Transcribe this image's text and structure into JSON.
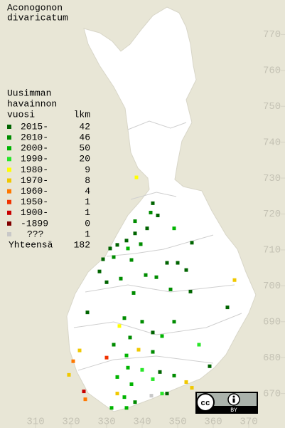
{
  "title": [
    "Aconogonon",
    "divaricatum"
  ],
  "legend": {
    "header": [
      "Uusimman",
      "havainnon",
      "vuosi"
    ],
    "count_header": "lkm",
    "rows": [
      {
        "label": "2015-",
        "count": 42,
        "color": "#006400"
      },
      {
        "label": "2010-",
        "count": 46,
        "color": "#008c00"
      },
      {
        "label": "2000-",
        "count": 50,
        "color": "#00b400"
      },
      {
        "label": "1990-",
        "count": 20,
        "color": "#28e628"
      },
      {
        "label": "1980-",
        "count": 9,
        "color": "#ffff00"
      },
      {
        "label": "1970-",
        "count": 8,
        "color": "#f0c800"
      },
      {
        "label": "1960-",
        "count": 4,
        "color": "#ff7800"
      },
      {
        "label": "1950-",
        "count": 1,
        "color": "#f03200"
      },
      {
        "label": "1900-",
        "count": 1,
        "color": "#c80000"
      },
      {
        "label": "-1899",
        "count": 0,
        "color": "#800000"
      },
      {
        "label": "???",
        "count": 1,
        "color": "#c8c8c8"
      }
    ],
    "total_label": "Yhteensä",
    "total": 182
  },
  "xticks": [
    310,
    320,
    330,
    340,
    350,
    360,
    370
  ],
  "yticks": [
    670,
    680,
    690,
    700,
    710,
    720,
    730,
    740,
    750,
    760,
    770
  ],
  "xlim": [
    300,
    380.2
  ],
  "ylim": [
    660.4,
    779.6
  ],
  "points": [
    {
      "x": 338.4,
      "y": 730.2,
      "period": 4
    },
    {
      "x": 343,
      "y": 723,
      "period": 0
    },
    {
      "x": 342.4,
      "y": 720.4,
      "period": 1
    },
    {
      "x": 344.4,
      "y": 719.6,
      "period": 0
    },
    {
      "x": 338,
      "y": 718,
      "period": 1
    },
    {
      "x": 341.4,
      "y": 716,
      "period": 0
    },
    {
      "x": 338,
      "y": 714.6,
      "period": 0
    },
    {
      "x": 349,
      "y": 716,
      "period": 2
    },
    {
      "x": 335.6,
      "y": 712.6,
      "period": 0
    },
    {
      "x": 339.6,
      "y": 711.6,
      "period": 1
    },
    {
      "x": 354,
      "y": 712,
      "period": 0
    },
    {
      "x": 331,
      "y": 710.4,
      "period": 0
    },
    {
      "x": 333,
      "y": 711.4,
      "period": 0
    },
    {
      "x": 336,
      "y": 710.4,
      "period": 2
    },
    {
      "x": 329,
      "y": 707.4,
      "period": 0
    },
    {
      "x": 332,
      "y": 708,
      "period": 1
    },
    {
      "x": 337,
      "y": 707.2,
      "period": 1
    },
    {
      "x": 347,
      "y": 706.4,
      "period": 0
    },
    {
      "x": 350,
      "y": 706.4,
      "period": 0
    },
    {
      "x": 352.4,
      "y": 704.4,
      "period": 0
    },
    {
      "x": 328,
      "y": 704,
      "period": 0
    },
    {
      "x": 334,
      "y": 702,
      "period": 1
    },
    {
      "x": 341,
      "y": 703,
      "period": 1
    },
    {
      "x": 344,
      "y": 702.4,
      "period": 1
    },
    {
      "x": 348,
      "y": 699,
      "period": 1
    },
    {
      "x": 353.6,
      "y": 698.4,
      "period": 0
    },
    {
      "x": 330,
      "y": 701,
      "period": 0
    },
    {
      "x": 337.6,
      "y": 698,
      "period": 1
    },
    {
      "x": 366,
      "y": 701.6,
      "period": 5
    },
    {
      "x": 364,
      "y": 694,
      "period": 0
    },
    {
      "x": 324.6,
      "y": 692.6,
      "period": 0
    },
    {
      "x": 335,
      "y": 691,
      "period": 1
    },
    {
      "x": 340,
      "y": 690,
      "period": 1
    },
    {
      "x": 349,
      "y": 690,
      "period": 1
    },
    {
      "x": 333.6,
      "y": 688.8,
      "period": 4
    },
    {
      "x": 343,
      "y": 687,
      "period": 0
    },
    {
      "x": 345.6,
      "y": 686,
      "period": 2
    },
    {
      "x": 336.6,
      "y": 685.6,
      "period": 1
    },
    {
      "x": 332,
      "y": 683.6,
      "period": 1
    },
    {
      "x": 339,
      "y": 682.2,
      "period": 5
    },
    {
      "x": 356,
      "y": 683.6,
      "period": 3
    },
    {
      "x": 322.4,
      "y": 682,
      "period": 5
    },
    {
      "x": 335.6,
      "y": 680.6,
      "period": 2
    },
    {
      "x": 343,
      "y": 681.6,
      "period": 1
    },
    {
      "x": 359,
      "y": 677.6,
      "period": 0
    },
    {
      "x": 320.6,
      "y": 679,
      "period": 6
    },
    {
      "x": 336,
      "y": 677.2,
      "period": 2
    },
    {
      "x": 340,
      "y": 676.6,
      "period": 3
    },
    {
      "x": 345,
      "y": 676,
      "period": 0
    },
    {
      "x": 349,
      "y": 675,
      "period": 1
    },
    {
      "x": 352.4,
      "y": 673.2,
      "period": 5
    },
    {
      "x": 354,
      "y": 671.6,
      "period": 5
    },
    {
      "x": 319.4,
      "y": 675.2,
      "period": 5
    },
    {
      "x": 323.6,
      "y": 670.6,
      "period": 8
    },
    {
      "x": 333,
      "y": 674.6,
      "period": 2
    },
    {
      "x": 337,
      "y": 672.6,
      "period": 2
    },
    {
      "x": 343,
      "y": 674,
      "period": 3
    },
    {
      "x": 347,
      "y": 670,
      "period": 0
    },
    {
      "x": 333,
      "y": 670,
      "period": 5
    },
    {
      "x": 335,
      "y": 669,
      "period": 2
    },
    {
      "x": 338,
      "y": 667.6,
      "period": 1
    },
    {
      "x": 342.6,
      "y": 669.4,
      "period": 10
    },
    {
      "x": 324,
      "y": 668.4,
      "period": 6
    },
    {
      "x": 331.4,
      "y": 666,
      "period": 2
    },
    {
      "x": 335.6,
      "y": 666,
      "period": 2
    },
    {
      "x": 345.6,
      "y": 670,
      "period": 3
    },
    {
      "x": 330,
      "y": 680,
      "period": 7
    }
  ],
  "license": {
    "badge": "cc",
    "attribution": "BY"
  }
}
